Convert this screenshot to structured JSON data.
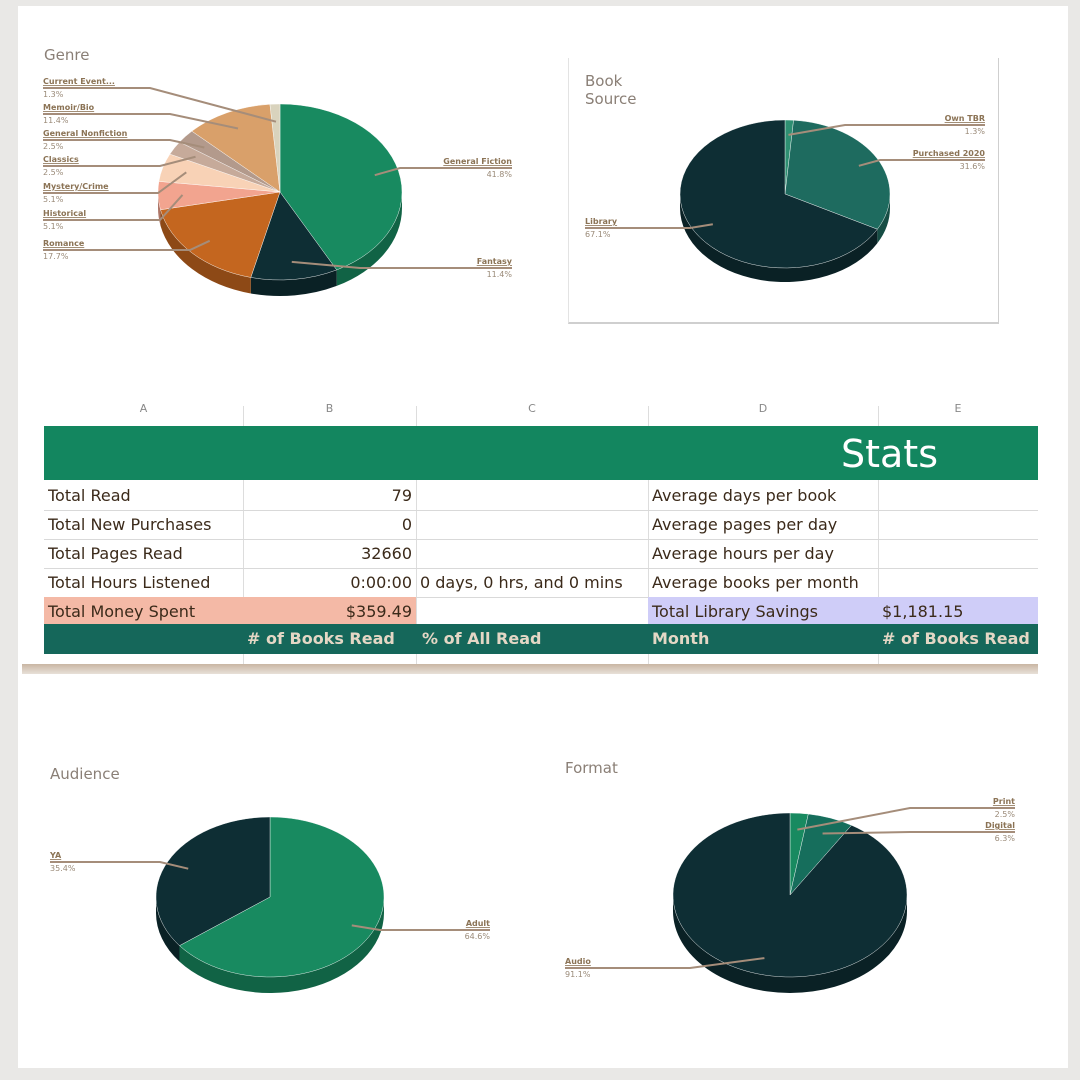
{
  "colors": {
    "green": "#188a60",
    "dark_teal": "#0e2e34",
    "banner_green": "#13865f",
    "header_teal": "#15675a",
    "salmon": "#f4b9a6",
    "lavender": "#cfcdf8",
    "label_brown": "#8b7355"
  },
  "sheet": {
    "col_headers": [
      "A",
      "B",
      "C",
      "D",
      "E"
    ],
    "banner_title": "Stats",
    "rows": [
      {
        "a": "Total Read",
        "b": "79",
        "c": "",
        "d": "Average days per book",
        "e": ""
      },
      {
        "a": "Total New Purchases",
        "b": "0",
        "c": "",
        "d": "Average pages per day",
        "e": ""
      },
      {
        "a": "Total Pages Read",
        "b": "32660",
        "c": "",
        "d": "Average hours per day",
        "e": ""
      },
      {
        "a": "Total Hours Listened",
        "b": "0:00:00",
        "c": "0 days, 0 hrs, and 0 mins",
        "d": "Average books per month",
        "e": ""
      },
      {
        "a": "Total Money Spent",
        "b": "$359.49",
        "c": "",
        "d": "Total Library Savings",
        "e": "$1,181.15"
      }
    ],
    "table_header": {
      "a": "",
      "b": "# of Books Read",
      "c": "% of All Read",
      "d": "Month",
      "e": "# of Books Read"
    }
  },
  "chart_data": [
    {
      "type": "pie",
      "title": "Genre",
      "slices": [
        {
          "name": "General Fiction",
          "value": 41.8,
          "color": "#188a60"
        },
        {
          "name": "Fantasy",
          "value": 11.4,
          "color": "#0e2e34"
        },
        {
          "name": "Romance",
          "value": 17.7,
          "color": "#c4661f"
        },
        {
          "name": "Historical",
          "value": 5.1,
          "color": "#f2a48f"
        },
        {
          "name": "Mystery/Crime",
          "value": 5.1,
          "color": "#f8d2b6"
        },
        {
          "name": "Classics",
          "value": 2.5,
          "color": "#c6aa9a"
        },
        {
          "name": "General Nonfiction",
          "value": 2.5,
          "color": "#b39a8c"
        },
        {
          "name": "Memoir/Bio",
          "value": 11.4,
          "color": "#d9a06a"
        },
        {
          "name": "Current Event...",
          "value": 1.3,
          "color": "#d9d3bd"
        }
      ],
      "value_labels": [
        "41.8%",
        "11.4%",
        "17.7%",
        "5.1%",
        "5.1%",
        "2.5%",
        "2.5%",
        "11.4%",
        "1.3%"
      ]
    },
    {
      "type": "pie",
      "title": "Book Source",
      "slices": [
        {
          "name": "Own TBR",
          "value": 1.3,
          "color": "#2e8f72"
        },
        {
          "name": "Purchased 2020",
          "value": 31.6,
          "color": "#1e6b5f"
        },
        {
          "name": "Library",
          "value": 67.1,
          "color": "#0e2e34"
        }
      ],
      "value_labels": [
        "1.3%",
        "31.6%",
        "67.1%"
      ]
    },
    {
      "type": "pie",
      "title": "Audience",
      "slices": [
        {
          "name": "Adult",
          "value": 64.6,
          "color": "#188a60"
        },
        {
          "name": "YA",
          "value": 35.4,
          "color": "#0e2e34"
        }
      ],
      "value_labels": [
        "64.6%",
        "35.4%"
      ]
    },
    {
      "type": "pie",
      "title": "Format",
      "slices": [
        {
          "name": "Print",
          "value": 2.5,
          "color": "#188a60"
        },
        {
          "name": "Digital",
          "value": 6.3,
          "color": "#166e5c"
        },
        {
          "name": "Audio",
          "value": 91.1,
          "color": "#0e2e34"
        }
      ],
      "value_labels": [
        "2.5%",
        "6.3%",
        "91.1%"
      ]
    }
  ]
}
